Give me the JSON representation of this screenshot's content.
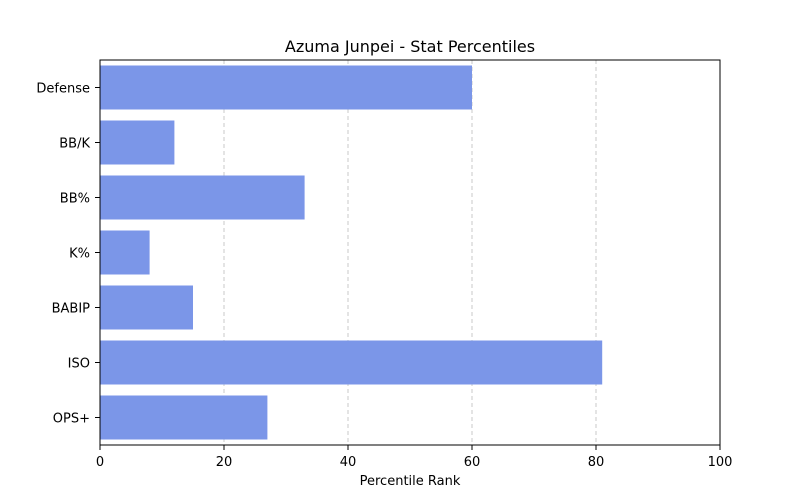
{
  "chart_data": {
    "type": "bar",
    "orientation": "horizontal",
    "title": "Azuma Junpei - Stat Percentiles",
    "xlabel": "Percentile Rank",
    "ylabel": "",
    "xlim": [
      0,
      100
    ],
    "xticks": [
      0,
      20,
      40,
      60,
      80,
      100
    ],
    "xtick_labels": [
      "0",
      "20",
      "40",
      "60",
      "80",
      "100"
    ],
    "grid": "x-dashed",
    "bar_color": "#7b96e8",
    "categories": [
      "Defense",
      "BB/K",
      "BB%",
      "K%",
      "BABIP",
      "ISO",
      "OPS+"
    ],
    "values": [
      60,
      12,
      33,
      8,
      15,
      81,
      27
    ]
  }
}
